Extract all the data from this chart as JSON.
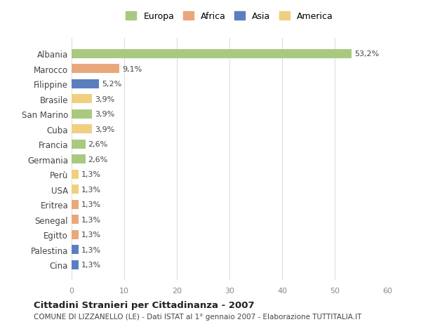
{
  "countries": [
    "Albania",
    "Marocco",
    "Filippine",
    "Brasile",
    "San Marino",
    "Cuba",
    "Francia",
    "Germania",
    "Perù",
    "USA",
    "Eritrea",
    "Senegal",
    "Egitto",
    "Palestina",
    "Cina"
  ],
  "values": [
    53.2,
    9.1,
    5.2,
    3.9,
    3.9,
    3.9,
    2.6,
    2.6,
    1.3,
    1.3,
    1.3,
    1.3,
    1.3,
    1.3,
    1.3
  ],
  "labels": [
    "53,2%",
    "9,1%",
    "5,2%",
    "3,9%",
    "3,9%",
    "3,9%",
    "2,6%",
    "2,6%",
    "1,3%",
    "1,3%",
    "1,3%",
    "1,3%",
    "1,3%",
    "1,3%",
    "1,3%"
  ],
  "categories": [
    "Europa",
    "Africa",
    "Asia",
    "America",
    "Europa",
    "America",
    "Europa",
    "Europa",
    "America",
    "America",
    "Africa",
    "Africa",
    "Africa",
    "Asia",
    "Asia"
  ],
  "colors": {
    "Europa": "#a8c97f",
    "Africa": "#e8a87c",
    "Asia": "#5b7fbe",
    "America": "#f0d080"
  },
  "legend_order": [
    "Europa",
    "Africa",
    "Asia",
    "America"
  ],
  "xlim": [
    0,
    60
  ],
  "xticks": [
    0,
    10,
    20,
    30,
    40,
    50,
    60
  ],
  "title": "Cittadini Stranieri per Cittadinanza - 2007",
  "subtitle": "COMUNE DI LIZZANELLO (LE) - Dati ISTAT al 1° gennaio 2007 - Elaborazione TUTTITALIA.IT",
  "background_color": "#ffffff",
  "grid_color": "#dddddd",
  "bar_height": 0.6
}
